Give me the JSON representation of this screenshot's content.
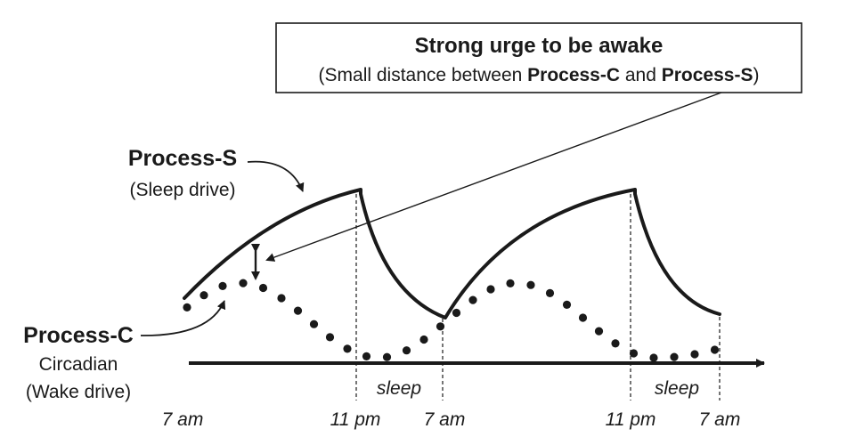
{
  "callout": {
    "title": "Strong urge to be awake",
    "subtitle_open": "(Small distance between ",
    "process_c": "Process-C",
    "and_word": " and ",
    "process_s": "Process-S",
    "subtitle_close": ")"
  },
  "process_s_label": {
    "name": "Process-S",
    "desc": "(Sleep drive)"
  },
  "process_c_label": {
    "name": "Process-C",
    "desc1": "Circadian",
    "desc2": "(Wake drive)"
  },
  "sleep_labels": [
    "sleep",
    "sleep"
  ],
  "time_labels": [
    "7 am",
    "11 pm",
    "7 am",
    "11 pm",
    "7 am"
  ],
  "colors": {
    "ink": "#1a1a1a",
    "background": "#ffffff"
  }
}
